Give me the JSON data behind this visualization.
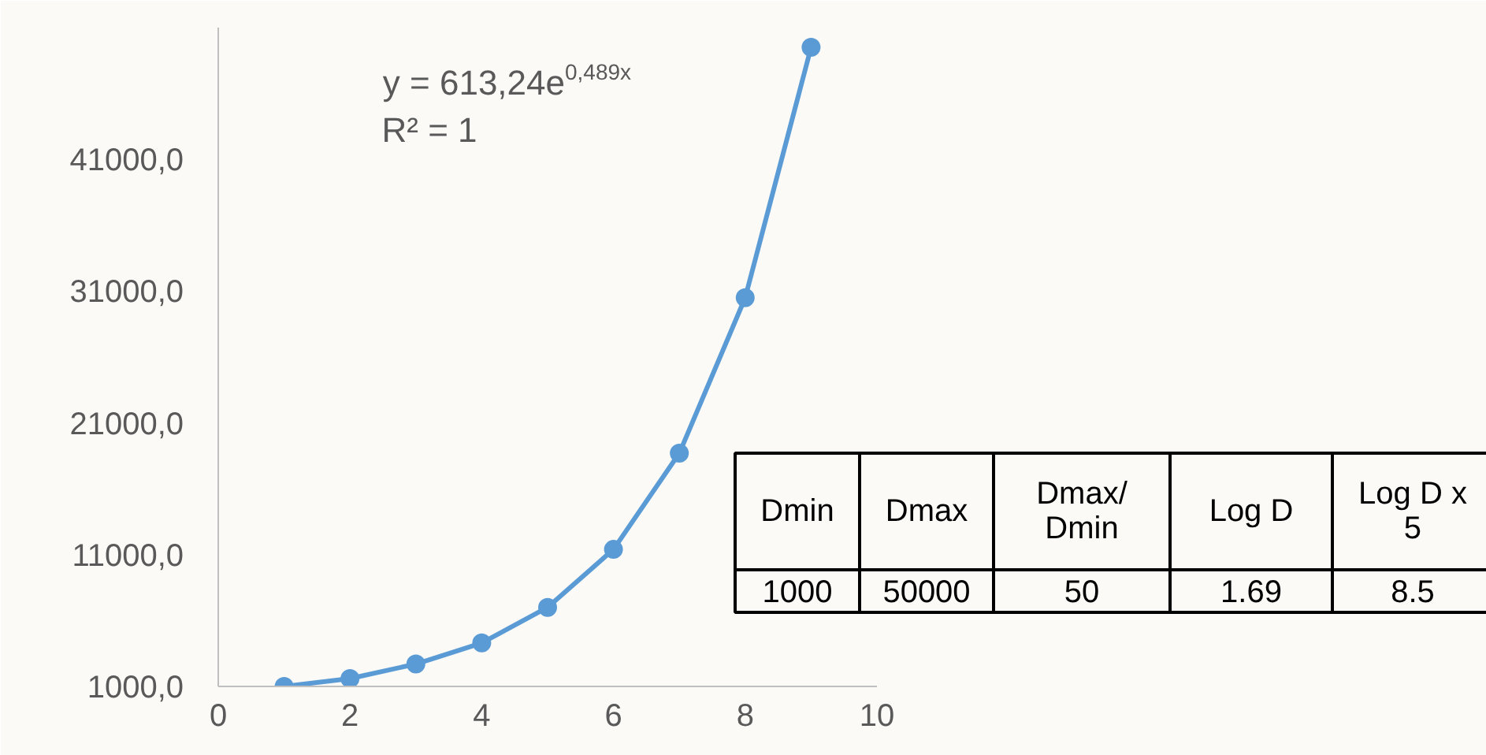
{
  "chart_data": {
    "type": "line",
    "marker": "circle",
    "line_style": "solid",
    "x": [
      1,
      2,
      3,
      4,
      5,
      6,
      7,
      8,
      9
    ],
    "series": [
      {
        "color": "#5b9bd5",
        "values": [
          1000,
          1600,
          2700,
          4300,
          7000,
          11400,
          18700,
          30500,
          49500
        ]
      }
    ],
    "xlim": [
      0,
      10
    ],
    "xticks": [
      0,
      2,
      4,
      6,
      8,
      10
    ],
    "ylim": [
      1000,
      51000
    ],
    "yticks": [
      {
        "value": 1000,
        "label": "1000,0"
      },
      {
        "value": 11000,
        "label": "11000,0"
      },
      {
        "value": 21000,
        "label": "21000,0"
      },
      {
        "value": 31000,
        "label": "31000,0"
      },
      {
        "value": 41000,
        "label": "41000,0"
      }
    ],
    "annotations": [
      "y = 613,24e$^{0,489x}$",
      "R² = 1",
      "Dmin",
      "Dmax",
      "Dmax/\nDmin",
      "Log D",
      "Log D x\n5",
      "1000",
      "50000",
      "50",
      "1.69",
      "8.5"
    ]
  }
}
